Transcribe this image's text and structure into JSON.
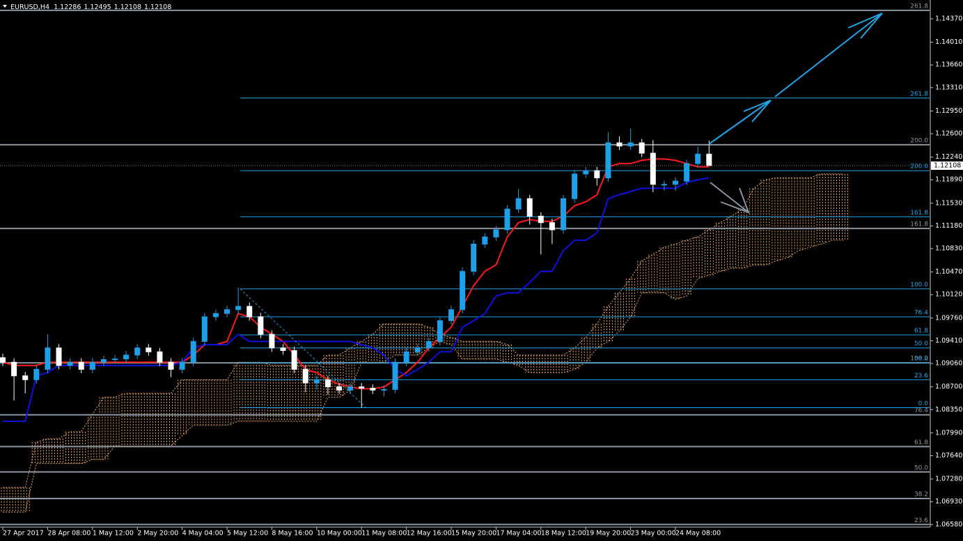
{
  "chart_data": {
    "type": "candlestick",
    "title": "EURUSD,H4",
    "ohlc": [
      1.12286,
      1.12495,
      1.12108,
      1.12108
    ],
    "xlim": [
      -0.25,
      82.67
    ],
    "ylim": [
      1.0654,
      1.1466
    ],
    "yticks": [
      {
        "value": 1.1437,
        "label": "1.14370"
      },
      {
        "value": 1.1401,
        "label": "1.14010"
      },
      {
        "value": 1.1366,
        "label": "1.13660"
      },
      {
        "value": 1.1331,
        "label": "1.13310"
      },
      {
        "value": 1.1295,
        "label": "1.12950"
      },
      {
        "value": 1.126,
        "label": "1.12600"
      },
      {
        "value": 1.1224,
        "label": "1.12240"
      },
      {
        "value": 1.1189,
        "label": "1.11890"
      },
      {
        "value": 1.1153,
        "label": "1.11530"
      },
      {
        "value": 1.1118,
        "label": "1.11180"
      },
      {
        "value": 1.1083,
        "label": "1.10830"
      },
      {
        "value": 1.1047,
        "label": "1.10470"
      },
      {
        "value": 1.1012,
        "label": "1.10120"
      },
      {
        "value": 1.0976,
        "label": "1.09760"
      },
      {
        "value": 1.0941,
        "label": "1.09410"
      },
      {
        "value": 1.0906,
        "label": "1.09060"
      },
      {
        "value": 1.087,
        "label": "1.08700"
      },
      {
        "value": 1.0835,
        "label": "1.08350"
      },
      {
        "value": 1.0799,
        "label": "1.07990"
      },
      {
        "value": 1.0764,
        "label": "1.07640"
      },
      {
        "value": 1.0728,
        "label": "1.07280"
      },
      {
        "value": 1.0693,
        "label": "1.06930"
      },
      {
        "value": 1.0658,
        "label": "1.06580"
      }
    ],
    "xticks": [
      {
        "value": 0,
        "label": "27 Apr 2017"
      },
      {
        "value": 4,
        "label": "28 Apr 08:00"
      },
      {
        "value": 8,
        "label": "1 May 12:00"
      },
      {
        "value": 12,
        "label": "2 May 20:00"
      },
      {
        "value": 16,
        "label": "4 May 04:00"
      },
      {
        "value": 20,
        "label": "5 May 12:00"
      },
      {
        "value": 24,
        "label": "8 May 16:00"
      },
      {
        "value": 28,
        "label": "10 May 00:00"
      },
      {
        "value": 32,
        "label": "11 May 08:00"
      },
      {
        "value": 36,
        "label": "12 May 16:00"
      },
      {
        "value": 40,
        "label": "15 May 20:00"
      },
      {
        "value": 44,
        "label": "17 May 04:00"
      },
      {
        "value": 48,
        "label": "18 May 12:00"
      },
      {
        "value": 52,
        "label": "19 May 20:00"
      },
      {
        "value": 56,
        "label": "23 May 00:00"
      },
      {
        "value": 60,
        "label": "24 May 08:00"
      }
    ],
    "candles": {
      "up_color": "#1e9fe6",
      "down_color": "#ffffff",
      "open": [
        1.0915,
        1.0908,
        1.0887,
        1.0881,
        1.0897,
        1.093,
        1.0903,
        1.0908,
        1.0897,
        1.0908,
        1.0912,
        1.0913,
        1.0919,
        1.093,
        1.0924,
        1.0908,
        1.0897,
        1.0908,
        1.094,
        1.0978,
        1.0983,
        1.0989,
        1.0994,
        1.0978,
        1.0951,
        1.093,
        1.0926,
        1.0897,
        1.0876,
        1.0881,
        1.087,
        1.0865,
        1.087,
        1.0868,
        1.0865,
        1.0866,
        1.0908,
        1.0924,
        1.093,
        1.094,
        1.0972,
        1.0989,
        1.1048,
        1.109,
        1.1101,
        1.1112,
        1.1144,
        1.116,
        1.1133,
        1.1123,
        1.1112,
        1.116,
        1.1198,
        1.1203,
        1.1192,
        1.1246,
        1.1241,
        1.1246,
        1.123,
        1.1182,
        1.1182,
        1.1187,
        1.1214,
        1.12286
      ],
      "high": [
        1.0921,
        1.0914,
        1.0893,
        1.0903,
        1.0951,
        1.0936,
        1.0914,
        1.0914,
        1.0914,
        1.0918,
        1.0919,
        1.0925,
        1.0936,
        1.0936,
        1.093,
        1.0914,
        1.0914,
        1.0946,
        1.0984,
        1.0989,
        1.0995,
        1.1023,
        1.1,
        1.0984,
        1.0957,
        1.0936,
        1.0932,
        1.0903,
        1.0887,
        1.0887,
        1.0876,
        1.0876,
        1.0876,
        1.0874,
        1.0872,
        1.0914,
        1.093,
        1.0936,
        1.0946,
        1.0978,
        1.0995,
        1.1054,
        1.1096,
        1.1107,
        1.1118,
        1.115,
        1.1175,
        1.1166,
        1.1139,
        1.1129,
        1.1166,
        1.1204,
        1.1209,
        1.1209,
        1.1262,
        1.1256,
        1.1268,
        1.1252,
        1.125,
        1.1188,
        1.1193,
        1.122,
        1.124,
        1.12495
      ],
      "low": [
        1.0902,
        1.0849,
        1.086,
        1.0875,
        1.0891,
        1.0897,
        1.0897,
        1.0891,
        1.0891,
        1.0902,
        1.0906,
        1.0907,
        1.0913,
        1.0918,
        1.0902,
        1.0885,
        1.0891,
        1.0902,
        1.0934,
        1.0972,
        1.0977,
        1.0983,
        1.0972,
        1.0945,
        1.0924,
        1.092,
        1.0891,
        1.0862,
        1.0866,
        1.0858,
        1.0859,
        1.0859,
        1.0838,
        1.0859,
        1.0855,
        1.086,
        1.0902,
        1.0918,
        1.0924,
        1.0934,
        1.0966,
        1.0983,
        1.1042,
        1.1084,
        1.1095,
        1.1106,
        1.1138,
        1.112,
        1.1074,
        1.109,
        1.1106,
        1.1154,
        1.1192,
        1.118,
        1.1186,
        1.1235,
        1.1235,
        1.1224,
        1.117,
        1.1172,
        1.1172,
        1.1181,
        1.1208,
        1.12108
      ],
      "close": [
        1.0908,
        1.0887,
        1.0881,
        1.0897,
        1.093,
        1.0903,
        1.0908,
        1.0897,
        1.0908,
        1.0912,
        1.0913,
        1.0919,
        1.093,
        1.0924,
        1.0908,
        1.0897,
        1.0908,
        1.094,
        1.0978,
        1.0983,
        1.0989,
        1.0994,
        1.0978,
        1.0951,
        1.093,
        1.0926,
        1.0897,
        1.0876,
        1.0881,
        1.087,
        1.0865,
        1.087,
        1.0868,
        1.0865,
        1.0866,
        1.0908,
        1.0924,
        1.093,
        1.094,
        1.0972,
        1.0989,
        1.1048,
        1.109,
        1.1101,
        1.1112,
        1.1144,
        1.116,
        1.1133,
        1.1123,
        1.1112,
        1.116,
        1.1198,
        1.1203,
        1.1192,
        1.1246,
        1.1241,
        1.1246,
        1.123,
        1.1182,
        1.1182,
        1.1187,
        1.1214,
        1.12286,
        1.12108
      ]
    },
    "tenkan": {
      "color": "#ff1a1a",
      "values": [
        1.0908,
        1.0903,
        1.0903,
        1.0903,
        1.0908,
        1.0908,
        1.0908,
        1.0908,
        1.0908,
        1.0908,
        1.0908,
        1.0908,
        1.0908,
        1.0908,
        1.0908,
        1.0908,
        1.0908,
        1.0919,
        1.0935,
        1.0935,
        1.094,
        1.0983,
        1.0978,
        1.0962,
        1.0951,
        1.094,
        1.0919,
        1.0897,
        1.0892,
        1.0881,
        1.0874,
        1.087,
        1.0867,
        1.0867,
        1.087,
        1.0881,
        1.0892,
        1.0908,
        1.093,
        1.0946,
        1.0962,
        1.0994,
        1.1026,
        1.1048,
        1.1058,
        1.1101,
        1.1123,
        1.1128,
        1.1125,
        1.1125,
        1.1133,
        1.1149,
        1.1155,
        1.1166,
        1.1209,
        1.1214,
        1.1214,
        1.1219,
        1.1221,
        1.1221,
        1.1219,
        1.1214,
        1.1209,
        1.1209
      ]
    },
    "kijun": {
      "color": "#1010e0",
      "values": [
        1.0817,
        1.0817,
        1.0817,
        1.0887,
        1.0892,
        1.0903,
        1.0903,
        1.0903,
        1.0903,
        1.0903,
        1.0903,
        1.0903,
        1.0903,
        1.0903,
        1.0903,
        1.0903,
        1.0908,
        1.093,
        1.0935,
        1.0935,
        1.0935,
        1.0951,
        1.094,
        1.094,
        1.094,
        1.094,
        1.094,
        1.094,
        1.094,
        1.094,
        1.094,
        1.094,
        1.0935,
        1.093,
        1.0919,
        1.0897,
        1.0887,
        1.0897,
        1.0908,
        1.0924,
        1.0924,
        1.0962,
        1.0972,
        1.0983,
        1.101,
        1.1015,
        1.1015,
        1.1031,
        1.1048,
        1.1048,
        1.108,
        1.1096,
        1.1096,
        1.1107,
        1.116,
        1.1166,
        1.1171,
        1.1176,
        1.1176,
        1.1176,
        1.1176,
        1.1185,
        1.1189,
        1.1192
      ]
    },
    "cloud": {
      "color": "#f0a860",
      "span_a": [
        1.0715,
        1.0715,
        1.0715,
        1.0785,
        1.079,
        1.079,
        1.0801,
        1.0801,
        1.0828,
        1.0854,
        1.0854,
        1.086,
        1.086,
        1.086,
        1.086,
        1.086,
        1.0881,
        1.0881,
        1.0881,
        1.0881,
        1.0881,
        1.0908,
        1.0908,
        1.0908,
        1.0903,
        1.0903,
        1.0903,
        1.0903,
        1.0903,
        1.0919,
        1.0919,
        1.093,
        1.094,
        1.0951,
        1.0967,
        1.0967,
        1.0967,
        1.0967,
        1.0962,
        1.0951,
        1.0946,
        1.094,
        1.094,
        1.094,
        1.094,
        1.0935,
        1.0919,
        1.0919,
        1.0919,
        1.0919,
        1.0919,
        1.093,
        1.0946,
        1.0967,
        1.0994,
        1.1015,
        1.1037,
        1.1064,
        1.1074,
        1.1085,
        1.109,
        1.1096,
        1.1101,
        1.1112,
        1.1123,
        1.1133,
        1.1144,
        1.1176,
        1.1189,
        1.1192,
        1.1192,
        1.1192,
        1.1192,
        1.1198,
        1.1198,
        1.1198
      ],
      "span_b": [
        1.0677,
        1.0677,
        1.0677,
        1.0752,
        1.0752,
        1.0752,
        1.0752,
        1.0752,
        1.0758,
        1.0758,
        1.0779,
        1.0779,
        1.0779,
        1.0779,
        1.0779,
        1.0779,
        1.0795,
        1.0811,
        1.0811,
        1.0811,
        1.0811,
        1.0817,
        1.0817,
        1.0817,
        1.0817,
        1.0817,
        1.0817,
        1.0817,
        1.0817,
        1.0854,
        1.0854,
        1.0865,
        1.0908,
        1.0908,
        1.0908,
        1.0919,
        1.0919,
        1.0919,
        1.093,
        1.094,
        1.0935,
        1.0913,
        1.0913,
        1.0913,
        1.0913,
        1.0908,
        1.0903,
        1.0892,
        1.0892,
        1.0892,
        1.0892,
        1.0897,
        1.0908,
        1.093,
        1.094,
        1.0956,
        1.0978,
        1.1015,
        1.1015,
        1.1015,
        1.1005,
        1.101,
        1.1037,
        1.1042,
        1.1048,
        1.1053,
        1.1053,
        1.1058,
        1.1058,
        1.1064,
        1.1069,
        1.108,
        1.1085,
        1.109,
        1.1096,
        1.1096
      ]
    },
    "fib_gray": {
      "color": "#8c96a0",
      "levels": [
        "261.8",
        "200.0",
        "161.8",
        "100.0",
        "76.4",
        "61.8",
        "50.0",
        "38.2",
        "23.6"
      ],
      "prices": [
        1.145,
        1.1243,
        1.1114,
        1.0907,
        1.0827,
        1.0778,
        1.0739,
        1.0698,
        1.0658
      ]
    },
    "fib_blue": {
      "color": "#1fa6e8",
      "levels": [
        "261.8",
        "200.0",
        "161.8",
        "100.0",
        "76.4",
        "61.8",
        "50.0",
        "38.2",
        "23.6",
        "0.0"
      ],
      "prices": [
        1.1315,
        1.1203,
        1.1132,
        1.1021,
        1.0978,
        1.095,
        1.093,
        1.0907,
        1.0881,
        1.0838
      ]
    }
  }
}
